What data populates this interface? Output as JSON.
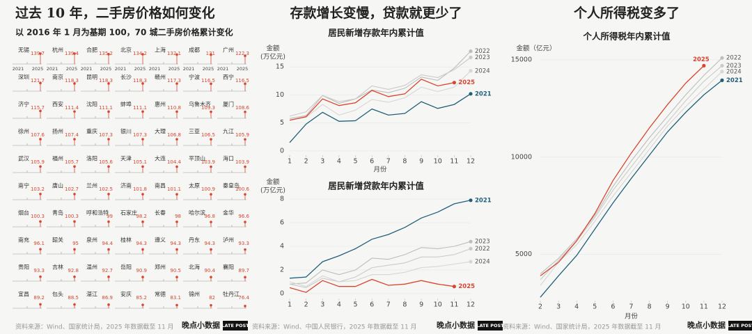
{
  "chart_data": [
    {
      "type": "small-multiples",
      "headline": "过去 10 年，二手房价格如何变化",
      "subtitle": "以 2016 年 1 月为基期 100，70 城二手房价格累计变化",
      "axis_labels": [
        "2021",
        "2025"
      ],
      "color": "#d9452f",
      "ylim": [
        70,
        145
      ],
      "categories": [
        "无锡",
        "杭州",
        "合肥",
        "北京",
        "上海",
        "成都",
        "广州",
        "深圳",
        "南京",
        "昆明",
        "长沙",
        "赣州",
        "宁波",
        "西宁",
        "济宁",
        "西安",
        "沈阳",
        "蚌埠",
        "惠州",
        "乌鲁木齐",
        "厦门",
        "徐州",
        "扬州",
        "重庆",
        "银川",
        "大理",
        "三亚",
        "九江",
        "武汉",
        "福州",
        "洛阳",
        "天津",
        "大连",
        "平顶山",
        "海口",
        "南宁",
        "唐山",
        "兰州",
        "济南",
        "南昌",
        "太原",
        "秦皇岛",
        "烟台",
        "青岛",
        "呼和浩特",
        "石家庄",
        "长春",
        "哈尔滨",
        "金华",
        "南充",
        "韶关",
        "泉州",
        "桂林",
        "遵义",
        "丹东",
        "泸州",
        "贵阳",
        "吉林",
        "温州",
        "岳阳",
        "郑州",
        "北海",
        "襄阳",
        "宜昌",
        "包头",
        "湛江",
        "安庆",
        "常德",
        "锦州",
        "牡丹江"
      ],
      "values": [
        139.7,
        139.4,
        135.2,
        134.2,
        132.1,
        131,
        122.3,
        121.7,
        118.3,
        118.3,
        118.3,
        117.3,
        116.5,
        116.5,
        115.7,
        111.4,
        111.1,
        111.1,
        110.8,
        109.3,
        108.6,
        107.6,
        107.4,
        107.3,
        107.3,
        106.8,
        106.5,
        105.9,
        105.9,
        105.7,
        105.6,
        105.1,
        104.4,
        103.9,
        103.9,
        103.2,
        102.7,
        102.5,
        101.8,
        101.1,
        100.9,
        100.6,
        100.3,
        100.3,
        99,
        98.2,
        98,
        96.8,
        96.6,
        96.1,
        95,
        94.4,
        94.3,
        94.3,
        94.3,
        93.3,
        93.3,
        92.8,
        92.7,
        90.9,
        90.5,
        90.4,
        89.7,
        89.2,
        88.5,
        86.9,
        85.2,
        83.1,
        82,
        76.4
      ],
      "source": "资料来源：Wind、国家统计局，2025 年数据截至 11 月"
    },
    {
      "type": "line",
      "headline": "存款增长变慢，贷款就更少了",
      "title": "居民新增存款年内累计值",
      "ylabel": "金额",
      "yunit": "(万亿元)",
      "xlabel": "月份",
      "x": [
        1,
        2,
        3,
        4,
        5,
        6,
        7,
        8,
        9,
        10,
        11,
        12
      ],
      "xlim": [
        1,
        12
      ],
      "xticks": [
        1,
        2,
        3,
        4,
        5,
        6,
        7,
        8,
        9,
        10,
        11,
        12
      ],
      "ylim": [
        -0.5,
        18
      ],
      "yticks": [
        0,
        5,
        10,
        15
      ],
      "series": [
        {
          "name": "2022",
          "color": "#bdbdbd",
          "values": [
            5.8,
            6.3,
            9.9,
            8.5,
            9.3,
            10.9,
            10.4,
            11.2,
            13.2,
            12.6,
            14.8,
            17.8
          ]
        },
        {
          "name": "2023",
          "color": "#cacaca",
          "values": [
            6.2,
            7.0,
            9.9,
            8.8,
            9.3,
            11.6,
            11.0,
            11.7,
            13.6,
            13.1,
            14.5,
            16.7
          ]
        },
        {
          "name": "2024",
          "color": "#d6d6d6",
          "values": [
            5.5,
            6.0,
            8.3,
            6.4,
            7.3,
            9.2,
            8.7,
            9.5,
            11.4,
            10.6,
            11.4,
            14.3
          ]
        },
        {
          "name": "2021",
          "color": "#1f5f7a",
          "values": [
            1.5,
            4.8,
            6.9,
            5.3,
            5.4,
            7.5,
            6.4,
            6.7,
            8.8,
            7.6,
            8.3,
            10.2
          ]
        },
        {
          "name": "2025",
          "color": "#d9452f",
          "values": [
            5.5,
            6.1,
            9.3,
            8.1,
            8.6,
            10.8,
            9.7,
            10.2,
            12.8,
            11.6,
            12.2,
            null
          ]
        }
      ]
    },
    {
      "type": "line",
      "title": "居民新增贷款年内累计值",
      "ylabel": "金额",
      "yunit": "(万亿元)",
      "x": [
        1,
        2,
        3,
        4,
        5,
        6,
        7,
        8,
        9,
        10,
        11,
        12
      ],
      "xlim": [
        1,
        12
      ],
      "xticks": [
        1,
        2,
        3,
        4,
        5,
        6,
        7,
        8,
        9,
        10,
        11,
        12
      ],
      "ylim": [
        -0.3,
        8.3
      ],
      "yticks": [
        0,
        2,
        4,
        6,
        8
      ],
      "series": [
        {
          "name": "2023",
          "color": "#bdbdbd",
          "values": [
            0.8,
            0.9,
            2.0,
            1.6,
            2.0,
            3.0,
            2.9,
            3.3,
            3.9,
            3.8,
            4.0,
            4.4
          ]
        },
        {
          "name": "2022",
          "color": "#cacaca",
          "values": [
            0.8,
            0.5,
            1.3,
            1.0,
            1.4,
            2.2,
            2.4,
            2.6,
            3.1,
            3.1,
            3.3,
            3.8
          ]
        },
        {
          "name": "2024",
          "color": "#d6d6d6",
          "values": [
            1.0,
            0.6,
            1.5,
            1.0,
            1.1,
            1.6,
            1.6,
            1.8,
            2.2,
            2.3,
            2.5,
            2.7
          ]
        },
        {
          "name": "2021",
          "color": "#1f5f7a",
          "values": [
            1.3,
            1.4,
            2.7,
            3.2,
            3.8,
            4.6,
            5.0,
            5.6,
            6.4,
            6.9,
            7.6,
            7.9
          ]
        },
        {
          "name": "2025",
          "color": "#d9452f",
          "values": [
            0.5,
            0.1,
            1.1,
            0.6,
            0.6,
            1.2,
            0.7,
            0.8,
            1.1,
            0.8,
            0.6,
            null
          ]
        }
      ],
      "source": "资料来源：Wind、中国人民银行，2025 年数据截至 11 月"
    },
    {
      "type": "line",
      "headline": "个人所得税变多了",
      "title": "个人所得税年内累计值",
      "ylabel": "金额（亿元）",
      "xlabel": "月份",
      "x": [
        2,
        3,
        4,
        5,
        6,
        7,
        8,
        9,
        10,
        11,
        12
      ],
      "xlim": [
        2,
        12
      ],
      "xticks": [
        2,
        3,
        4,
        5,
        6,
        7,
        8,
        9,
        10,
        11,
        12
      ],
      "ylim": [
        2700,
        15500
      ],
      "yticks": [
        5000,
        10000,
        15000
      ],
      "series": [
        {
          "name": "2022",
          "color": "#bdbdbd",
          "values": [
            4000,
            4800,
            5800,
            7000,
            8500,
            9800,
            11000,
            12100,
            13200,
            14200,
            15100
          ]
        },
        {
          "name": "2023",
          "color": "#cacaca",
          "values": [
            3700,
            4700,
            5700,
            6900,
            8300,
            9500,
            10700,
            11800,
            12900,
            13900,
            14700
          ]
        },
        {
          "name": "2024",
          "color": "#d6d6d6",
          "values": [
            3400,
            4600,
            5500,
            6700,
            8000,
            9200,
            10400,
            11600,
            12600,
            13500,
            14400
          ]
        },
        {
          "name": "2021",
          "color": "#1f5f7a",
          "values": [
            2800,
            3900,
            4950,
            6300,
            7650,
            8900,
            10100,
            11300,
            12300,
            13200,
            13950
          ]
        },
        {
          "name": "2025",
          "color": "#d9452f",
          "values": [
            3900,
            4600,
            5700,
            7100,
            8800,
            10200,
            11500,
            12700,
            13800,
            14700,
            null
          ]
        }
      ],
      "source": "资料来源：Wind、国家统计局，2025 年数据截至 11 月"
    }
  ],
  "brand": {
    "name": "晚点小数据",
    "logo": "LATE POST"
  }
}
